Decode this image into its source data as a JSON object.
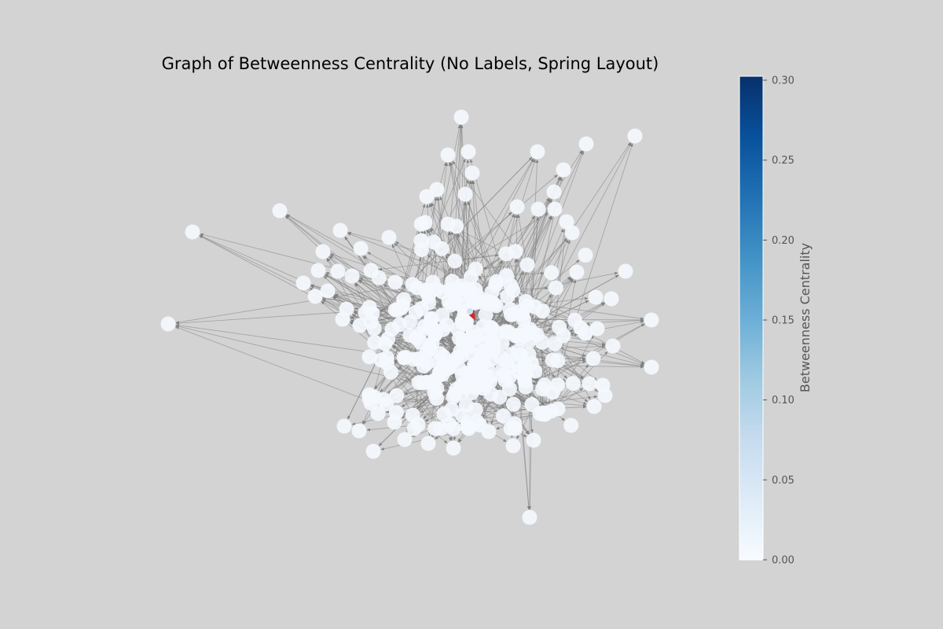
{
  "chart_data": {
    "type": "network graph",
    "title": "Graph of Betweenness Centrality (No Labels, Spring Layout)",
    "layout": "spring",
    "node_labels_shown": false,
    "node_color_scale": "Blues",
    "node_colors": {
      "low": "#f4f8fe",
      "high": "#08306b",
      "edge": "#808080",
      "highlight": "#d62728"
    },
    "colorbar": {
      "label": "Betweenness Centrality",
      "range": [
        0,
        0.3
      ],
      "ticks": [
        "0.00",
        "0.05",
        "0.10",
        "0.15",
        "0.20",
        "0.25",
        "0.30"
      ],
      "tick_values": [
        0,
        0.05,
        0.1,
        0.15,
        0.2,
        0.25,
        0.3
      ]
    }
  }
}
